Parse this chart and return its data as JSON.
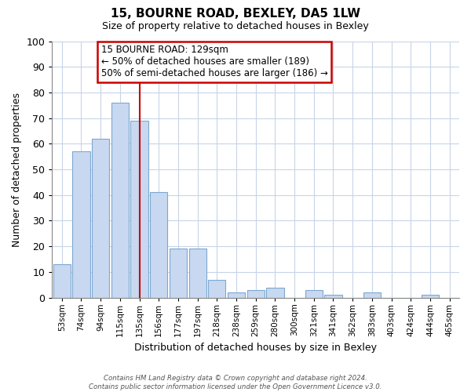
{
  "title": "15, BOURNE ROAD, BEXLEY, DA5 1LW",
  "subtitle": "Size of property relative to detached houses in Bexley",
  "xlabel": "Distribution of detached houses by size in Bexley",
  "ylabel": "Number of detached properties",
  "bar_labels": [
    "53sqm",
    "74sqm",
    "94sqm",
    "115sqm",
    "135sqm",
    "156sqm",
    "177sqm",
    "197sqm",
    "218sqm",
    "238sqm",
    "259sqm",
    "280sqm",
    "300sqm",
    "321sqm",
    "341sqm",
    "362sqm",
    "383sqm",
    "403sqm",
    "424sqm",
    "444sqm",
    "465sqm"
  ],
  "bar_values": [
    13,
    57,
    62,
    76,
    69,
    41,
    19,
    19,
    7,
    2,
    3,
    4,
    0,
    3,
    1,
    0,
    2,
    0,
    0,
    1,
    0
  ],
  "bar_color": "#c8d8f0",
  "bar_edge_color": "#7ca8d0",
  "vline_x_index": 4,
  "vline_color": "#cc0000",
  "ylim": [
    0,
    100
  ],
  "yticks": [
    0,
    10,
    20,
    30,
    40,
    50,
    60,
    70,
    80,
    90,
    100
  ],
  "annotation_title": "15 BOURNE ROAD: 129sqm",
  "annotation_line1": "← 50% of detached houses are smaller (189)",
  "annotation_line2": "50% of semi-detached houses are larger (186) →",
  "annotation_box_color": "#ffffff",
  "annotation_box_edge": "#cc0000",
  "footer_line1": "Contains HM Land Registry data © Crown copyright and database right 2024.",
  "footer_line2": "Contains public sector information licensed under the Open Government Licence v3.0.",
  "background_color": "#ffffff",
  "grid_color": "#c8d4e8"
}
